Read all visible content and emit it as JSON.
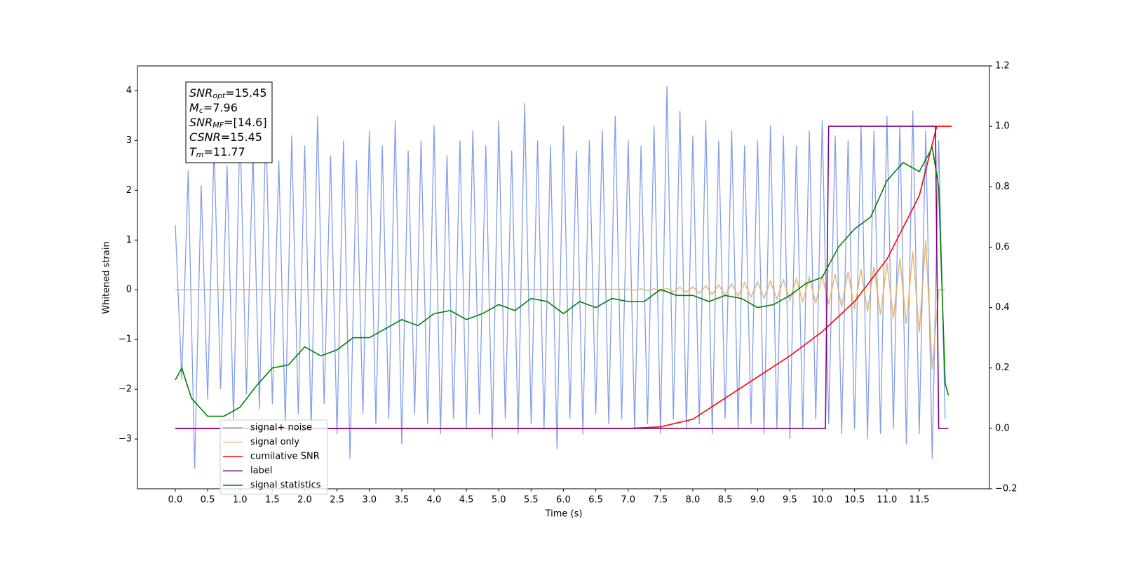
{
  "chart_data": {
    "type": "line",
    "xlabel": "Time (s)",
    "ylabel": "Whitened strain",
    "xlim": [
      -0.585,
      12.585
    ],
    "ylim": [
      -4.0,
      4.5
    ],
    "y2lim": [
      -0.2,
      1.2
    ],
    "xticks": [
      {
        "value": 0,
        "label": "0.0"
      },
      0.5,
      {
        "value": 1,
        "label": "1.0"
      },
      1.5,
      {
        "value": 2,
        "label": "2.0"
      },
      2.5,
      {
        "value": 3,
        "label": "3.0"
      },
      3.5,
      {
        "value": 4,
        "label": "4.0"
      },
      4.5,
      {
        "value": 5,
        "label": "5.0"
      },
      5.5,
      {
        "value": 6,
        "label": "6.0"
      },
      6.5,
      {
        "value": 7,
        "label": "7.0"
      },
      7.5,
      {
        "value": 8,
        "label": "8.0"
      },
      8.5,
      {
        "value": 9,
        "label": "9.0"
      },
      9.5,
      {
        "value": 10,
        "label": "10.0"
      },
      10.5,
      {
        "value": 11,
        "label": "11.0"
      },
      11.5
    ],
    "yticks": [
      {
        "value": -3,
        "label": "−3"
      },
      {
        "value": -2,
        "label": "−2"
      },
      {
        "value": -1,
        "label": "−1"
      },
      0,
      1,
      2,
      3,
      4
    ],
    "y2ticks": [
      {
        "value": -0.2,
        "label": "−0.2"
      },
      {
        "value": 0,
        "label": "0.0"
      },
      0.2,
      0.4,
      0.6,
      0.8,
      {
        "value": 1,
        "label": "1.0"
      },
      1.2
    ],
    "legend": "lower left",
    "annotation": [
      {
        "main": "SNR",
        "sub": "opt",
        "rest": "=15.45"
      },
      {
        "main": "M",
        "sub": "c",
        "rest": "=7.96"
      },
      {
        "main": "SNR",
        "sub": "MF",
        "rest": "=[14.6]"
      },
      {
        "main": "CSNR",
        "sub": null,
        "rest": "=15.45"
      },
      {
        "main": "T",
        "sub": "m",
        "rest": "=11.77"
      }
    ],
    "series": [
      {
        "name": "signal+ noise",
        "color": "#7692e8",
        "axis": "y",
        "x": [
          0,
          0.1,
          0.2,
          0.3,
          0.4,
          0.5,
          0.6,
          0.7,
          0.8,
          0.9,
          1,
          1.1,
          1.2,
          1.3,
          1.4,
          1.5,
          1.6,
          1.7,
          1.8,
          1.9,
          2,
          2.1,
          2.2,
          2.3,
          2.4,
          2.5,
          2.6,
          2.7,
          2.8,
          2.9,
          3,
          3.1,
          3.2,
          3.3,
          3.4,
          3.5,
          3.6,
          3.7,
          3.8,
          3.9,
          4,
          4.1,
          4.2,
          4.3,
          4.4,
          4.5,
          4.6,
          4.7,
          4.8,
          4.9,
          5,
          5.1,
          5.2,
          5.3,
          5.4,
          5.5,
          5.6,
          5.7,
          5.8,
          5.9,
          6,
          6.1,
          6.2,
          6.3,
          6.4,
          6.5,
          6.6,
          6.7,
          6.8,
          6.9,
          7,
          7.1,
          7.2,
          7.3,
          7.4,
          7.5,
          7.6,
          7.7,
          7.8,
          7.9,
          8,
          8.1,
          8.2,
          8.3,
          8.4,
          8.5,
          8.6,
          8.7,
          8.8,
          8.9,
          9,
          9.1,
          9.2,
          9.3,
          9.4,
          9.5,
          9.6,
          9.7,
          9.8,
          9.9,
          10,
          10.1,
          10.2,
          10.3,
          10.4,
          10.5,
          10.6,
          10.7,
          10.8,
          10.9,
          11,
          11.1,
          11.2,
          11.3,
          11.4,
          11.5,
          11.6,
          11.7,
          11.8,
          11.9
        ],
        "values": [
          1.3,
          -1.8,
          2.4,
          -3.6,
          2.1,
          -2.2,
          2.9,
          -2.0,
          2.5,
          -2.6,
          3.3,
          -2.1,
          2.8,
          -2.4,
          3.4,
          -2.3,
          2.6,
          -2.7,
          3.1,
          -2.5,
          2.9,
          -2.8,
          3.5,
          -2.3,
          2.7,
          -2.9,
          3.0,
          -3.4,
          2.6,
          -2.5,
          3.2,
          -2.7,
          2.9,
          -2.6,
          3.4,
          -3.1,
          2.8,
          -2.5,
          3.0,
          -2.7,
          3.3,
          -2.9,
          2.7,
          -2.6,
          3.0,
          -2.8,
          3.2,
          -2.5,
          2.9,
          -3.0,
          3.4,
          -2.6,
          2.8,
          -2.9,
          3.75,
          -2.7,
          3.0,
          -2.8,
          2.9,
          -3.2,
          3.3,
          -2.6,
          2.8,
          -2.9,
          3.0,
          -2.5,
          3.2,
          -2.7,
          3.5,
          -2.6,
          3.0,
          -2.8,
          2.9,
          -2.7,
          3.3,
          -2.9,
          4.1,
          -2.6,
          3.6,
          -2.8,
          3.1,
          -2.7,
          3.4,
          -2.9,
          3.0,
          -2.6,
          3.2,
          -2.8,
          2.9,
          -2.7,
          3.0,
          -2.9,
          3.3,
          -2.8,
          3.1,
          -3.0,
          2.9,
          -2.8,
          3.2,
          -2.6,
          3.4,
          -2.7,
          3.1,
          -2.9,
          3.0,
          -2.8,
          3.3,
          -3.0,
          3.2,
          -2.9,
          3.5,
          -2.8,
          3.3,
          -3.1,
          3.6,
          -2.9,
          3.2,
          -3.4,
          3.0,
          -2.6
        ]
      },
      {
        "name": "signal only",
        "color": "#e8b060",
        "axis": "y",
        "x": [
          0,
          7,
          7.1,
          7.2,
          7.3,
          7.4,
          7.5,
          7.6,
          7.7,
          7.8,
          7.9,
          8,
          8.1,
          8.2,
          8.3,
          8.4,
          8.5,
          8.6,
          8.7,
          8.8,
          8.9,
          9,
          9.1,
          9.2,
          9.3,
          9.4,
          9.5,
          9.6,
          9.7,
          9.8,
          9.9,
          10,
          10.1,
          10.2,
          10.3,
          10.4,
          10.5,
          10.6,
          10.7,
          10.8,
          10.9,
          11,
          11.1,
          11.2,
          11.3,
          11.4,
          11.5,
          11.6,
          11.7,
          11.8,
          11.9
        ],
        "values": [
          0,
          0.01,
          -0.01,
          0.02,
          -0.02,
          0.02,
          -0.03,
          0.03,
          -0.04,
          0.05,
          -0.05,
          0.06,
          -0.07,
          0.08,
          -0.09,
          0.1,
          -0.11,
          0.12,
          -0.13,
          0.14,
          -0.15,
          0.16,
          -0.17,
          0.18,
          -0.19,
          0.2,
          -0.21,
          0.22,
          -0.24,
          0.25,
          -0.27,
          0.29,
          -0.3,
          0.32,
          -0.34,
          0.36,
          -0.39,
          0.41,
          -0.44,
          0.47,
          -0.5,
          0.54,
          -0.58,
          0.63,
          -0.69,
          0.77,
          -0.86,
          1.0,
          -1.6,
          0,
          0
        ]
      },
      {
        "name": "cumilative SNR",
        "color": "#ff0000",
        "axis": "y2",
        "x": [
          0,
          7,
          7.5,
          8,
          8.5,
          9,
          9.5,
          10,
          10.5,
          11,
          11.5,
          11.77,
          11.8,
          12
        ],
        "values": [
          0,
          0,
          0.005,
          0.03,
          0.1,
          0.17,
          0.24,
          0.32,
          0.42,
          0.56,
          0.77,
          1.0,
          1.0,
          1.0
        ]
      },
      {
        "name": "label",
        "color": "#800080",
        "axis": "y2",
        "x": [
          0,
          10.05,
          10.1,
          11.75,
          11.8,
          11.95
        ],
        "values": [
          0,
          0,
          1,
          1,
          0,
          0
        ]
      },
      {
        "name": "signal statistics",
        "color": "#008000",
        "axis": "y2",
        "x": [
          0,
          0.1,
          0.25,
          0.5,
          0.75,
          1,
          1.25,
          1.5,
          1.75,
          2,
          2.25,
          2.5,
          2.75,
          3,
          3.25,
          3.5,
          3.75,
          4,
          4.25,
          4.5,
          4.75,
          5,
          5.25,
          5.5,
          5.75,
          6,
          6.25,
          6.5,
          6.75,
          7,
          7.25,
          7.5,
          7.75,
          8,
          8.25,
          8.5,
          8.75,
          9,
          9.25,
          9.5,
          9.75,
          10,
          10.25,
          10.5,
          10.75,
          11,
          11.25,
          11.5,
          11.7,
          11.8,
          11.9,
          11.95
        ],
        "values": [
          0.16,
          0.2,
          0.1,
          0.04,
          0.04,
          0.07,
          0.14,
          0.2,
          0.21,
          0.27,
          0.24,
          0.26,
          0.3,
          0.3,
          0.33,
          0.36,
          0.34,
          0.38,
          0.39,
          0.36,
          0.38,
          0.41,
          0.39,
          0.43,
          0.42,
          0.38,
          0.42,
          0.4,
          0.43,
          0.42,
          0.42,
          0.46,
          0.44,
          0.44,
          0.42,
          0.44,
          0.43,
          0.4,
          0.41,
          0.44,
          0.48,
          0.5,
          0.6,
          0.66,
          0.7,
          0.82,
          0.88,
          0.85,
          0.93,
          0.8,
          0.15,
          0.11
        ]
      }
    ]
  }
}
